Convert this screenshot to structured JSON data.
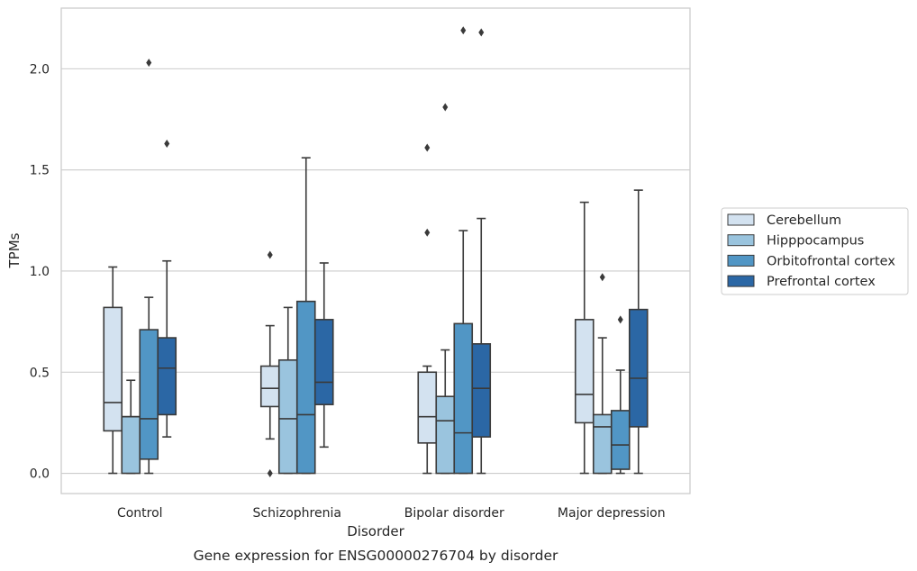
{
  "chart_data": {
    "type": "boxplot",
    "xlabel": "Disorder",
    "ylabel": "TPMs",
    "caption": "Gene expression for ENSG00000276704 by disorder",
    "ylim": [
      -0.1,
      2.3
    ],
    "yticks": [
      "0.0",
      "0.5",
      "1.0",
      "1.5",
      "2.0"
    ],
    "ytick_values": [
      0,
      0.5,
      1.0,
      1.5,
      2.0
    ],
    "grid": "horizontal",
    "legend_position": "right",
    "categories": [
      "Control",
      "Schizophrenia",
      "Bipolar disorder",
      "Major depression"
    ],
    "series": [
      {
        "name": "Cerebellum",
        "color": "#d3e2f0",
        "boxes": [
          {
            "whislo": 0.0,
            "q1": 0.21,
            "med": 0.35,
            "q3": 0.82,
            "whishi": 1.02,
            "fliers": []
          },
          {
            "whislo": 0.17,
            "q1": 0.33,
            "med": 0.42,
            "q3": 0.53,
            "whishi": 0.73,
            "fliers": [
              1.08,
              0.0
            ]
          },
          {
            "whislo": 0.0,
            "q1": 0.15,
            "med": 0.28,
            "q3": 0.5,
            "whishi": 0.53,
            "fliers": [
              1.61,
              1.19
            ]
          },
          {
            "whislo": 0.0,
            "q1": 0.25,
            "med": 0.39,
            "q3": 0.76,
            "whishi": 1.34,
            "fliers": []
          }
        ]
      },
      {
        "name": "Hipppocampus",
        "color": "#9ac4de",
        "boxes": [
          {
            "whislo": 0.0,
            "q1": 0.0,
            "med": 0.28,
            "q3": 0.28,
            "whishi": 0.46,
            "fliers": []
          },
          {
            "whislo": 0.0,
            "q1": 0.0,
            "med": 0.27,
            "q3": 0.56,
            "whishi": 0.82,
            "fliers": []
          },
          {
            "whislo": 0.0,
            "q1": 0.0,
            "med": 0.26,
            "q3": 0.38,
            "whishi": 0.61,
            "fliers": [
              1.81
            ]
          },
          {
            "whislo": 0.0,
            "q1": 0.0,
            "med": 0.23,
            "q3": 0.29,
            "whishi": 0.67,
            "fliers": [
              0.97
            ]
          }
        ]
      },
      {
        "name": "Orbitofrontal cortex",
        "color": "#5196c5",
        "boxes": [
          {
            "whislo": 0.0,
            "q1": 0.07,
            "med": 0.27,
            "q3": 0.71,
            "whishi": 0.87,
            "fliers": [
              2.03
            ]
          },
          {
            "whislo": 0.0,
            "q1": 0.0,
            "med": 0.29,
            "q3": 0.85,
            "whishi": 1.56,
            "fliers": []
          },
          {
            "whislo": 0.0,
            "q1": 0.0,
            "med": 0.2,
            "q3": 0.74,
            "whishi": 1.2,
            "fliers": [
              2.19
            ]
          },
          {
            "whislo": 0.0,
            "q1": 0.02,
            "med": 0.14,
            "q3": 0.31,
            "whishi": 0.51,
            "fliers": [
              0.76
            ]
          }
        ]
      },
      {
        "name": "Prefrontal cortex",
        "color": "#2b67a5",
        "boxes": [
          {
            "whislo": 0.18,
            "q1": 0.29,
            "med": 0.52,
            "q3": 0.67,
            "whishi": 1.05,
            "fliers": [
              1.63
            ]
          },
          {
            "whislo": 0.13,
            "q1": 0.34,
            "med": 0.45,
            "q3": 0.76,
            "whishi": 1.04,
            "fliers": []
          },
          {
            "whislo": 0.0,
            "q1": 0.18,
            "med": 0.42,
            "q3": 0.64,
            "whishi": 1.26,
            "fliers": [
              2.18
            ]
          },
          {
            "whislo": 0.0,
            "q1": 0.23,
            "med": 0.47,
            "q3": 0.81,
            "whishi": 1.4,
            "fliers": []
          }
        ]
      }
    ]
  }
}
